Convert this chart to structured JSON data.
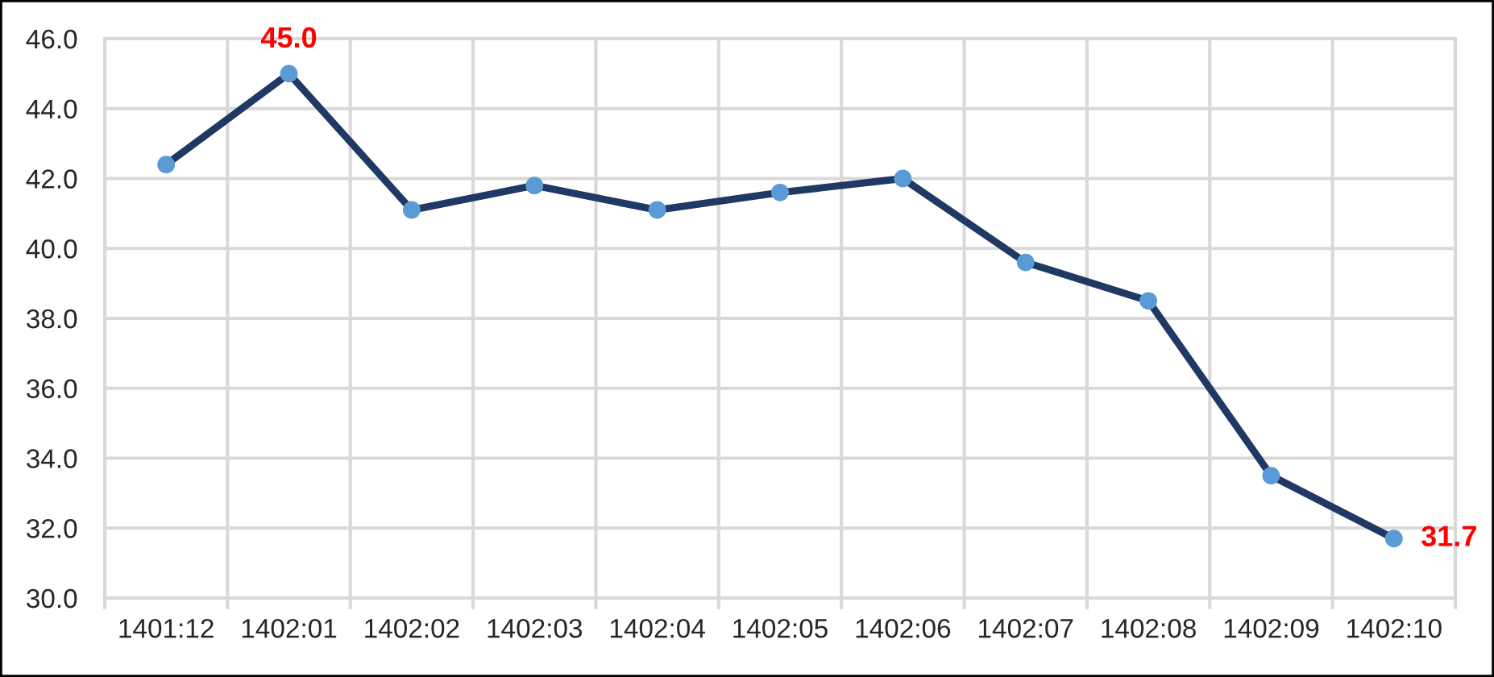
{
  "chart_data": {
    "type": "line",
    "categories": [
      "1401:12",
      "1402:01",
      "1402:02",
      "1402:03",
      "1402:04",
      "1402:05",
      "1402:06",
      "1402:07",
      "1402:08",
      "1402:09",
      "1402:10"
    ],
    "series": [
      {
        "color": "#203864",
        "colors": [
          "#5b9bd5",
          "#5b9bd5",
          "#5b9bd5",
          "#5b9bd5",
          "#5b9bd5",
          "#5b9bd5",
          "#5b9bd5",
          "#5b9bd5",
          "#5b9bd5",
          "#5b9bd5",
          "#5b9bd5"
        ],
        "values": [
          42.4,
          45.0,
          41.1,
          41.8,
          41.1,
          41.6,
          42.0,
          39.6,
          38.5,
          33.5,
          31.7
        ],
        "value_labels": [
          null,
          "45.0",
          null,
          null,
          null,
          null,
          null,
          null,
          null,
          null,
          "31.7"
        ]
      }
    ],
    "ylim": [
      30,
      46
    ],
    "yticks": [
      {
        "value": 30,
        "label": "30.0"
      },
      {
        "value": 32,
        "label": "32.0"
      },
      {
        "value": 34,
        "label": "34.0"
      },
      {
        "value": 36,
        "label": "36.0"
      },
      {
        "value": 38,
        "label": "38.0"
      },
      {
        "value": 40,
        "label": "40.0"
      },
      {
        "value": 42,
        "label": "42.0"
      },
      {
        "value": 44,
        "label": "44.0"
      },
      {
        "value": 46,
        "label": "46.0"
      }
    ],
    "grid": true,
    "marker": "circle",
    "line_style": "solid"
  }
}
